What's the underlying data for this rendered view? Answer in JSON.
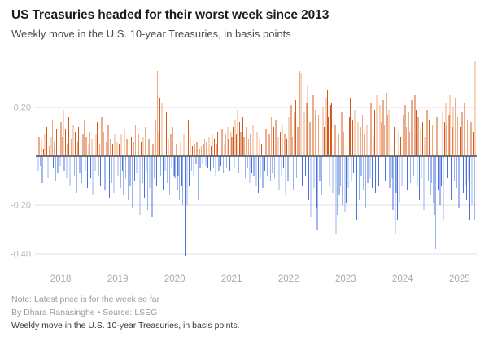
{
  "header": {
    "title": "US Treasuries headed for their worst week since 2013",
    "subtitle": "Weekly move in the U.S. 10-year Treasuries, in basis points"
  },
  "footer": {
    "note": "Note: Latest price is for the week so far",
    "byline": "By Dhara Ranasinghe • Source: LSEG",
    "caption": "Weekly move in the U.S. 10-year Treasuries, in basis points."
  },
  "chart_data": {
    "type": "bar",
    "title": "US Treasuries headed for their worst week since 2013",
    "subtitle": "Weekly move in the U.S. 10-year Treasuries, in basis points",
    "xlabel": "",
    "ylabel": "basis points",
    "x_unit": "weeks",
    "x_range": [
      "mid-2017",
      "April 2025"
    ],
    "ylim": [
      -0.43,
      0.4
    ],
    "grid": true,
    "legend": "none",
    "x_tick_labels": [
      "2018",
      "2019",
      "2020",
      "2021",
      "2022",
      "2023",
      "2024",
      "2025"
    ],
    "first_tick_week": 22,
    "weeks_per_year": 52,
    "y_ticks": [
      {
        "label": "0.20",
        "value": 0.2
      },
      {
        "label": "-0.20",
        "value": -0.2
      },
      {
        "label": "-0.40",
        "value": -0.4
      }
    ],
    "colors": {
      "positive": "#D45A1E",
      "positive_light": "#F2A87E",
      "negative": "#4A72DB",
      "negative_light": "#98B1EF",
      "axis": "#616161",
      "grid": "#E2E2E2",
      "tick_text": "#B5B5B5",
      "tick_text_x": "#A9A9A9"
    },
    "annotations": {
      "latest_week_value": 0.39,
      "covid_2020_low": -0.41,
      "aug_2024_low": -0.38
    },
    "values": [
      0.15,
      -0.06,
      0.08,
      -0.04,
      0.07,
      -0.11,
      0.03,
      0.09,
      -0.06,
      0.12,
      -0.09,
      0.04,
      -0.13,
      0.08,
      0.15,
      -0.05,
      0.06,
      -0.1,
      0.11,
      -0.07,
      0.13,
      -0.04,
      0.14,
      0.08,
      0.19,
      -0.06,
      0.11,
      -0.09,
      0.05,
      0.16,
      -0.12,
      0.07,
      -0.05,
      0.13,
      -0.08,
      0.1,
      -0.15,
      0.06,
      0.12,
      -0.07,
      0.04,
      -0.11,
      0.09,
      0.15,
      -0.06,
      0.08,
      -0.13,
      0.05,
      0.1,
      -0.09,
      0.07,
      -0.16,
      0.12,
      -0.06,
      0.09,
      0.14,
      -0.08,
      0.05,
      -0.12,
      0.16,
      -0.07,
      0.1,
      -0.14,
      0.06,
      -0.09,
      0.13,
      -0.17,
      0.07,
      -0.11,
      0.05,
      -0.15,
      0.09,
      -0.19,
      0.06,
      -0.08,
      0.05,
      -0.13,
      0.09,
      -0.06,
      -0.16,
      0.11,
      -0.09,
      0.07,
      -0.18,
      0.05,
      -0.12,
      0.08,
      -0.21,
      0.06,
      -0.1,
      0.13,
      -0.07,
      -0.15,
      0.09,
      -0.24,
      0.06,
      -0.11,
      0.08,
      -0.17,
      0.12,
      -0.06,
      -0.22,
      0.07,
      -0.13,
      0.1,
      -0.25,
      0.05,
      -0.09,
      0.15,
      -0.12,
      0.35,
      0.1,
      0.24,
      -0.08,
      0.22,
      -0.14,
      0.28,
      -0.06,
      0.18,
      -0.11,
      0.07,
      -0.16,
      0.09,
      -0.05,
      0.12,
      -0.08,
      -0.09,
      0.05,
      -0.14,
      -0.08,
      -0.18,
      0.06,
      -0.12,
      -0.2,
      0.09,
      -0.41,
      0.25,
      -0.2,
      0.15,
      -0.12,
      0.08,
      -0.06,
      0.04,
      -0.08,
      0.05,
      -0.03,
      0.06,
      -0.18,
      0.03,
      -0.05,
      0.04,
      -0.03,
      0.05,
      0.07,
      -0.04,
      0.06,
      -0.05,
      0.08,
      -0.06,
      0.04,
      0.09,
      -0.05,
      0.07,
      -0.08,
      0.05,
      0.1,
      -0.06,
      0.08,
      -0.04,
      0.11,
      -0.07,
      0.05,
      0.09,
      -0.05,
      0.12,
      0.07,
      -0.06,
      0.1,
      0.08,
      0.12,
      -0.05,
      0.15,
      0.09,
      0.19,
      -0.07,
      0.14,
      0.1,
      -0.06,
      0.16,
      0.08,
      -0.09,
      0.12,
      -0.05,
      0.07,
      -0.11,
      0.09,
      -0.07,
      0.13,
      -0.08,
      0.06,
      -0.12,
      0.1,
      -0.15,
      0.07,
      -0.09,
      0.05,
      -0.13,
      0.08,
      -0.06,
      0.11,
      -0.08,
      0.14,
      0.09,
      -0.1,
      0.16,
      -0.07,
      0.12,
      -0.09,
      0.15,
      -0.06,
      0.08,
      -0.14,
      0.1,
      -0.08,
      0.13,
      -0.05,
      0.09,
      -0.16,
      0.07,
      -0.1,
      0.16,
      -0.1,
      0.21,
      0.08,
      -0.14,
      0.18,
      0.23,
      -0.09,
      0.12,
      0.27,
      0.35,
      0.34,
      -0.12,
      0.26,
      0.18,
      -0.08,
      0.22,
      0.29,
      -0.18,
      0.14,
      -0.25,
      0.11,
      0.25,
      -0.13,
      0.19,
      -0.21,
      -0.3,
      0.17,
      -0.1,
      0.15,
      -0.16,
      0.2,
      0.12,
      -0.09,
      0.24,
      0.27,
      0.16,
      -0.12,
      0.21,
      0.22,
      -0.15,
      0.26,
      0.13,
      -0.32,
      -0.24,
      0.09,
      -0.16,
      -0.12,
      0.18,
      -0.2,
      0.1,
      -0.23,
      -0.19,
      0.08,
      -0.13,
      0.16,
      0.24,
      -0.1,
      0.15,
      -0.07,
      0.19,
      -0.3,
      -0.26,
      0.14,
      -0.18,
      0.12,
      -0.08,
      0.17,
      -0.14,
      0.09,
      -0.21,
      0.13,
      -0.11,
      0.16,
      -0.09,
      0.22,
      -0.13,
      0.08,
      0.19,
      -0.15,
      0.25,
      0.11,
      -0.12,
      0.21,
      0.14,
      -0.17,
      0.23,
      0.13,
      -0.1,
      0.26,
      0.17,
      0.19,
      -0.13,
      0.3,
      -0.09,
      -0.22,
      0.12,
      -0.32,
      -0.15,
      -0.26,
      0.1,
      -0.19,
      0.08,
      -0.12,
      0.17,
      -0.09,
      0.21,
      0.12,
      -0.14,
      0.18,
      0.1,
      -0.11,
      0.23,
      0.15,
      -0.08,
      0.25,
      0.19,
      -0.12,
      0.16,
      -0.18,
      0.11,
      -0.09,
      0.14,
      -0.22,
      0.08,
      -0.13,
      0.19,
      -0.1,
      0.15,
      -0.16,
      -0.11,
      0.13,
      -0.19,
      -0.24,
      -0.38,
      0.16,
      -0.14,
      0.1,
      -0.2,
      -0.12,
      0.18,
      -0.26,
      0.14,
      0.22,
      0.13,
      -0.09,
      0.17,
      0.25,
      -0.18,
      0.12,
      0.2,
      -0.1,
      0.24,
      -0.13,
      0.16,
      -0.21,
      0.12,
      -0.08,
      0.18,
      -0.15,
      0.22,
      -0.12,
      -0.18,
      0.15,
      -0.1,
      -0.26,
      0.14,
      -0.2,
      0.1,
      -0.26,
      0.39
    ]
  }
}
